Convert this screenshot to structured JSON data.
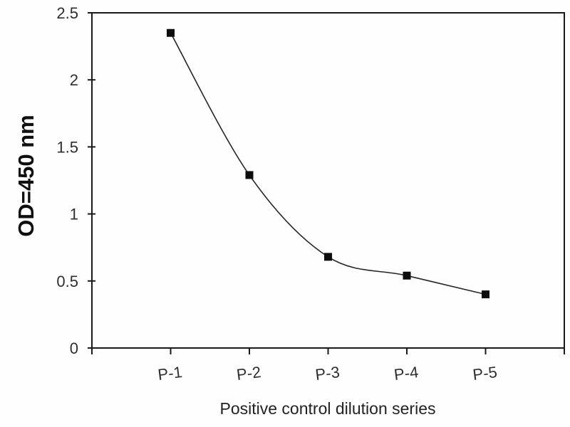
{
  "figure": {
    "background_color": "#fefefe"
  },
  "chart_data": {
    "type": "line",
    "title": "",
    "xlabel": "Positive control dilution series",
    "ylabel": "OD=450 nm",
    "categories": [
      "P-1",
      "P-2",
      "P-3",
      "P-4",
      "P-5"
    ],
    "series": [
      {
        "name": "Positive control",
        "values": [
          2.35,
          1.29,
          0.68,
          0.54,
          0.4
        ]
      }
    ],
    "ylim": [
      0,
      2.5
    ],
    "ytick_values": [
      0,
      0.5,
      1,
      1.5,
      2,
      2.5
    ],
    "ytick_labels": [
      "0",
      "0.5",
      "1",
      "1.5",
      "2",
      "2.5"
    ],
    "grid": false,
    "legend_position": "none",
    "frame": true,
    "smooth_line": true,
    "marker": "square",
    "line_color": "#262626",
    "marker_color": "#0d0d0d",
    "axis_color": "#1a1a1a",
    "tick_label_color": "#2e2e2e"
  }
}
